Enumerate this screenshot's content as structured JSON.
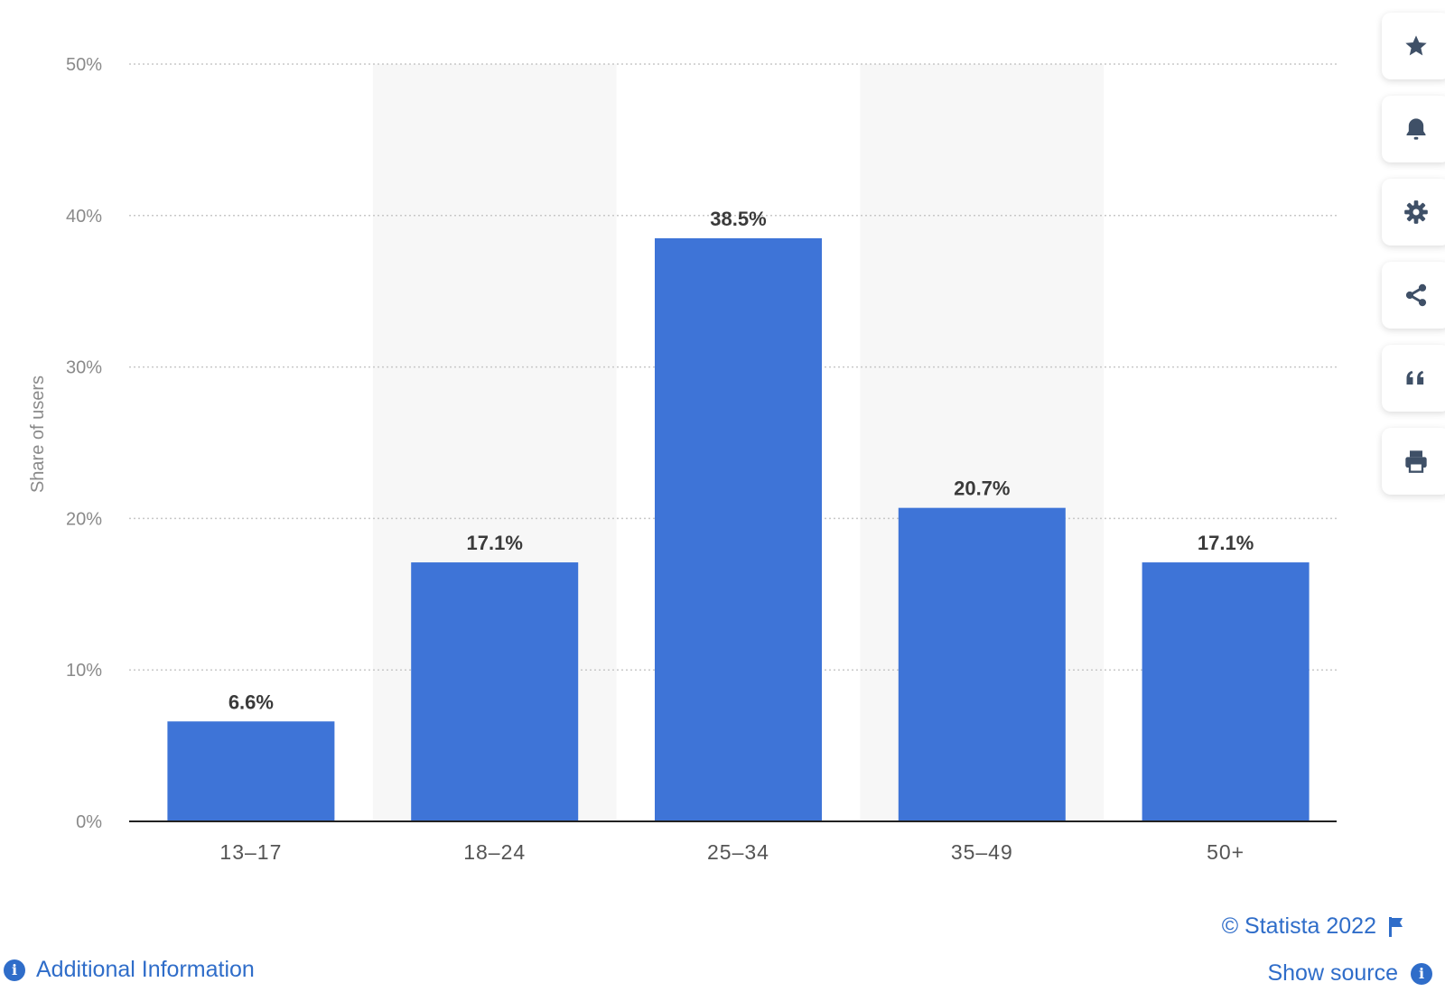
{
  "chart_data": {
    "type": "bar",
    "categories": [
      "13–17",
      "18–24",
      "25–34",
      "35–49",
      "50+"
    ],
    "values": [
      6.6,
      17.1,
      38.5,
      20.7,
      17.1
    ],
    "value_labels": [
      "6.6%",
      "17.1%",
      "38.5%",
      "20.7%",
      "17.1%"
    ],
    "title": "",
    "xlabel": "",
    "ylabel": "Share of users",
    "ylim": [
      0,
      50
    ],
    "yticks": [
      0,
      10,
      20,
      30,
      40,
      50
    ],
    "ytick_labels": [
      "0%",
      "10%",
      "20%",
      "30%",
      "40%",
      "50%"
    ],
    "grid": true,
    "legend": "none"
  },
  "colors": {
    "bar": "#3e74d7",
    "band": "#f7f7f7",
    "grid": "#c8c8c8",
    "axis": "#222222",
    "link": "#2f6dc9",
    "icon": "#3f5067"
  },
  "toolbar": {
    "items": [
      {
        "icon": "star-icon",
        "name": "favorite-button"
      },
      {
        "icon": "bell-icon",
        "name": "notification-button"
      },
      {
        "icon": "gear-icon",
        "name": "settings-button"
      },
      {
        "icon": "share-icon",
        "name": "share-button"
      },
      {
        "icon": "quote-icon",
        "name": "cite-button"
      },
      {
        "icon": "printer-icon",
        "name": "print-button"
      }
    ]
  },
  "footer": {
    "credit": "© Statista 2022",
    "show_source": "Show source",
    "additional_info": "Additional Information"
  }
}
